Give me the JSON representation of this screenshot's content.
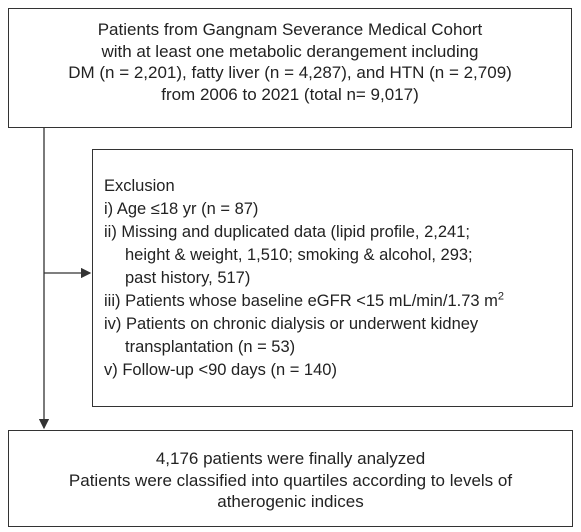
{
  "top_box": {
    "lines": [
      "Patients from Gangnam Severance Medical Cohort",
      "with at least one metabolic derangement including",
      "DM (n = 2,201), fatty liver (n = 4,287), and HTN (n = 2,709)",
      "from 2006 to 2021 (total n= 9,017)"
    ]
  },
  "exclusion_box": {
    "title": "Exclusion",
    "items": [
      {
        "lines": [
          "i) Age ≤18 yr (n = 87)"
        ]
      },
      {
        "lines": [
          "ii) Missing and duplicated data (lipid profile, 2,241;",
          "height & weight, 1,510; smoking & alcohol, 293;",
          "past history, 517)"
        ]
      },
      {
        "lines": [
          "iii) Patients whose baseline eGFR <15 mL/min/1.73 m"
        ],
        "sup": "2"
      },
      {
        "lines": [
          "iv) Patients on chronic dialysis or underwent kidney",
          "transplantation (n = 53)"
        ]
      },
      {
        "lines": [
          "v) Follow-up <90 days (n = 140)"
        ]
      }
    ]
  },
  "bottom_box": {
    "lines": [
      "4,176 patients were finally analyzed",
      "Patients were classified into quartiles according to levels of",
      "atherogenic indices"
    ]
  }
}
